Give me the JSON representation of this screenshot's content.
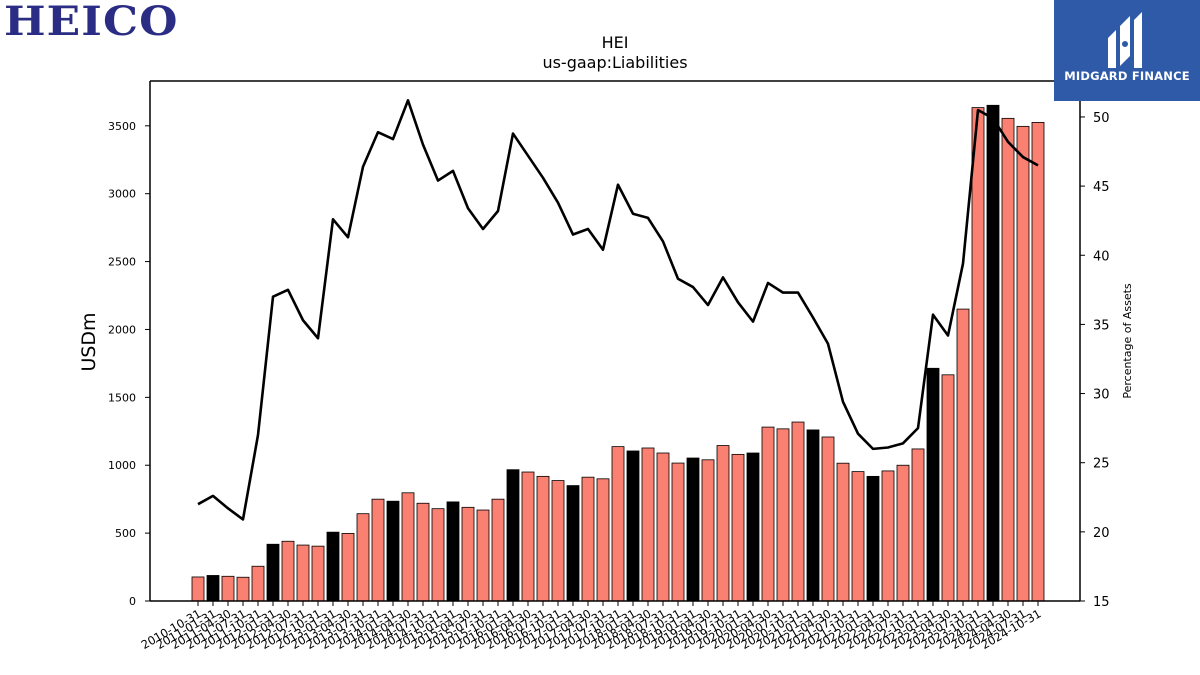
{
  "logos": {
    "company": "HEICO",
    "watermark": "MIDGARD FINANCE"
  },
  "colors": {
    "bar_default": "#fa8072",
    "bar_highlight": "#000000",
    "line": "#000000",
    "logo_blue": "#2b2d84",
    "badge_blue": "#2e5aa8"
  },
  "chart_data": {
    "type": "bar",
    "title": "HEI",
    "subtitle": "us-gaap:Liabilities",
    "ylabel": "USDm",
    "y2label": "Percentage of Assets",
    "ylim": [
      0,
      3830
    ],
    "y2lim": [
      15,
      52.6
    ],
    "yticks": [
      0,
      500,
      1000,
      1500,
      2000,
      2500,
      3000,
      3500
    ],
    "y2ticks": [
      15,
      20,
      25,
      30,
      35,
      40,
      45,
      50
    ],
    "grid": false,
    "categories": [
      "2010-10-31",
      "2011-01-31",
      "2011-04-30",
      "2011-07-31",
      "2011-10-31",
      "2012-01-31",
      "2012-04-30",
      "2012-07-31",
      "2012-10-31",
      "2013-01-31",
      "2013-04-30",
      "2013-07-31",
      "2013-10-31",
      "2014-01-31",
      "2014-04-30",
      "2014-07-31",
      "2014-10-31",
      "2015-01-31",
      "2015-04-30",
      "2015-07-31",
      "2015-10-31",
      "2016-01-31",
      "2016-04-30",
      "2016-07-31",
      "2016-10-31",
      "2017-01-31",
      "2017-04-30",
      "2017-07-31",
      "2017-10-31",
      "2018-01-31",
      "2018-04-30",
      "2018-07-31",
      "2018-10-31",
      "2019-01-31",
      "2019-04-30",
      "2019-07-31",
      "2019-10-31",
      "2020-01-31",
      "2020-04-30",
      "2020-07-31",
      "2020-10-31",
      "2021-01-31",
      "2021-04-30",
      "2021-07-31",
      "2021-10-31",
      "2022-01-31",
      "2022-04-30",
      "2022-07-31",
      "2022-10-31",
      "2023-01-31",
      "2023-04-30",
      "2023-07-31",
      "2023-10-31",
      "2024-01-31",
      "2024-04-30",
      "2024-07-31",
      "2024-10-31"
    ],
    "tick_labels": [
      "2010-10-31",
      "2011-01-31",
      "2011-04-30",
      "2011-07-31",
      "2011-10-31",
      "2012-01-31",
      "2012-04-30",
      "2012-07-31",
      "2012-10-31",
      "2013-01-31",
      "2013-04-30",
      "2013-07-31",
      "2013-10-31",
      "2014-01-31",
      "2014-04-30",
      "2014-07-31",
      "2014-10-31",
      "2015-01-31",
      "2015-04-30",
      "2015-07-31",
      "2015-10-31",
      "2016-01-31",
      "2016-04-30",
      "2016-07-31",
      "2016-10-31",
      "2017-01-31",
      "2017-04-30",
      "2017-07-31",
      "2017-10-31",
      "2018-01-31",
      "2018-04-30",
      "2018-07-31",
      "2018-10-31",
      "2019-01-31",
      "2019-04-30",
      "2019-07-31",
      "2019-10-31",
      "2020-01-31",
      "2020-04-30",
      "2020-07-31",
      "2020-10-31",
      "2021-01-31",
      "2021-04-30",
      "2021-07-31",
      "2021-10-31",
      "2022-01-31",
      "2022-04-30",
      "2022-07-31",
      "2022-10-31",
      "2023-01-31",
      "2023-04-30",
      "2023-07-31",
      "2023-10-31",
      "2024-01-31",
      "2024-04-30",
      "2024-07-31",
      "2024-10-31"
    ],
    "series": [
      {
        "kind": "bar",
        "axis": "left",
        "values": [
          177,
          188,
          182,
          175,
          256,
          418,
          440,
          412,
          404,
          507,
          498,
          643,
          750,
          735,
          797,
          720,
          680,
          730,
          690,
          670,
          750,
          967,
          950,
          918,
          887,
          850,
          912,
          900,
          1137,
          1105,
          1127,
          1090,
          1016,
          1053,
          1040,
          1145,
          1080,
          1090,
          1281,
          1268,
          1318,
          1260,
          1208,
          1015,
          953,
          918,
          958,
          1000,
          1120,
          1714,
          1666,
          2150,
          3634,
          3651,
          3555,
          3496,
          3525
        ],
        "highlight": [
          false,
          true,
          false,
          false,
          false,
          true,
          false,
          false,
          false,
          true,
          false,
          false,
          false,
          true,
          false,
          false,
          false,
          true,
          false,
          false,
          false,
          true,
          false,
          false,
          false,
          true,
          false,
          false,
          false,
          true,
          false,
          false,
          false,
          true,
          false,
          false,
          false,
          true,
          false,
          false,
          false,
          true,
          false,
          false,
          false,
          true,
          false,
          false,
          false,
          true,
          false,
          false,
          false,
          true,
          false,
          false,
          false
        ]
      },
      {
        "kind": "line",
        "axis": "right",
        "values": [
          22.0,
          22.6,
          21.7,
          20.9,
          27.0,
          37.0,
          37.5,
          35.3,
          34.0,
          42.6,
          41.3,
          46.4,
          48.9,
          48.4,
          51.2,
          48.0,
          45.4,
          46.1,
          43.4,
          41.9,
          43.2,
          48.8,
          47.2,
          45.6,
          43.8,
          41.5,
          41.9,
          40.4,
          45.1,
          43.0,
          42.7,
          41.0,
          38.3,
          37.7,
          36.4,
          38.4,
          36.6,
          35.2,
          38.0,
          37.3,
          37.3,
          35.5,
          33.6,
          29.4,
          27.1,
          26.0,
          26.1,
          26.4,
          27.5,
          35.7,
          34.2,
          39.4,
          50.5,
          49.9,
          48.2,
          47.1,
          46.5
        ]
      }
    ]
  }
}
